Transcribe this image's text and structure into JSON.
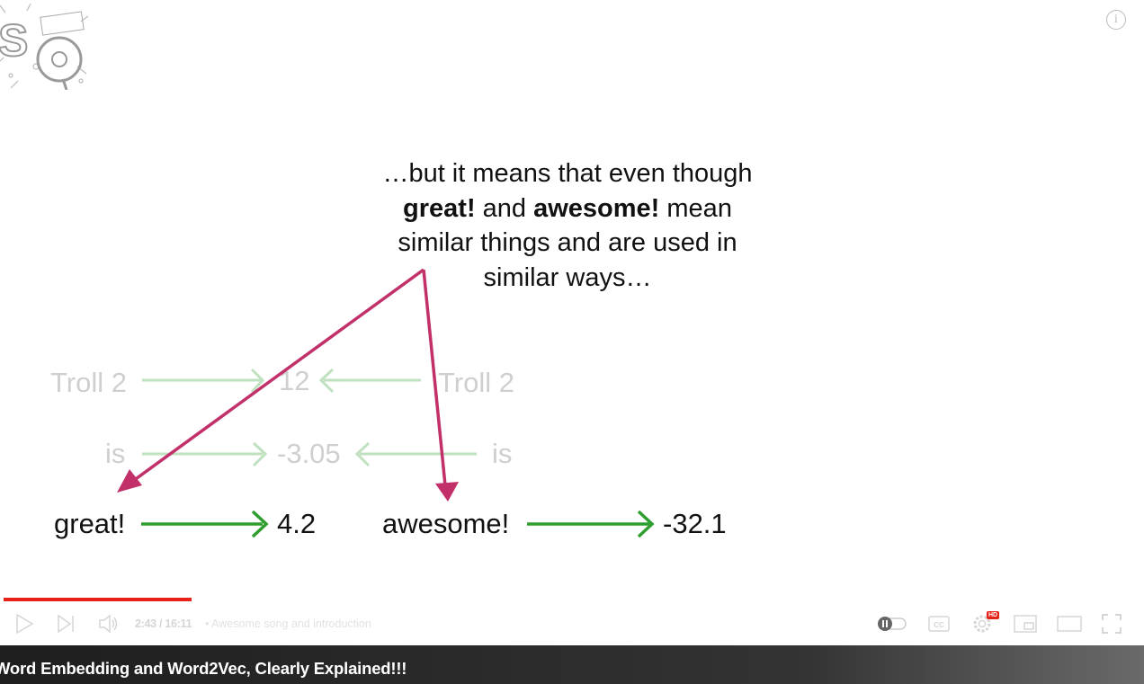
{
  "caption": {
    "line1": "…but it means that even though",
    "bold_great": "great!",
    "and_word": " and ",
    "bold_awesome": "awesome!",
    "mean_word": " mean",
    "line3": "similar things and are used in",
    "line4": "similar ways…"
  },
  "diagram": {
    "left_troll": "Troll 2",
    "left_is": "is",
    "left_great": "great!",
    "value_12": "12",
    "value_neg305": "-3.05",
    "value_42": "4.2",
    "right_troll": "Troll 2",
    "right_is": "is",
    "right_awesome": "awesome!",
    "value_neg321": "-32.1"
  },
  "colors": {
    "pointer_arrow": "#c2306a",
    "green_arrow": "#2e9e2e",
    "progress": "#e62117"
  },
  "player": {
    "progress_fraction": 0.168,
    "time": "2:43 / 16:11",
    "chapter": "• Awesome song and introduction",
    "hd_badge": "HD",
    "controls": [
      "play-icon",
      "next-icon",
      "volume-icon",
      "autoplay-toggle-icon",
      "captions-icon",
      "settings-icon",
      "miniplayer-icon",
      "theater-icon",
      "fullscreen-icon"
    ]
  },
  "video_title": "Word Embedding and Word2Vec, Clearly Explained!!!"
}
